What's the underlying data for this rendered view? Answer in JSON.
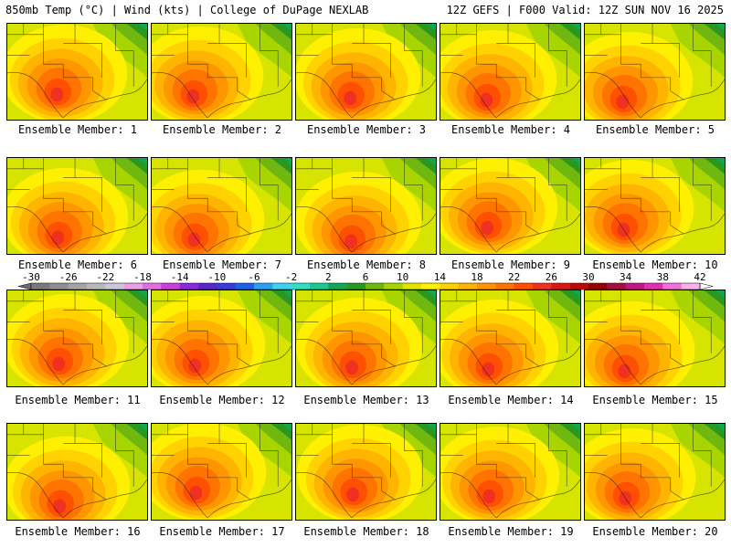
{
  "header": {
    "left": "850mb Temp (°C) | Wind (kts) | College of DuPage NEXLAB",
    "right": "12Z GEFS | F000 Valid: 12Z SUN NOV 16 2025"
  },
  "panels": [
    {
      "label": "Ensemble Member: 1"
    },
    {
      "label": "Ensemble Member: 2"
    },
    {
      "label": "Ensemble Member: 3"
    },
    {
      "label": "Ensemble Member: 4"
    },
    {
      "label": "Ensemble Member: 5"
    },
    {
      "label": "Ensemble Member: 6"
    },
    {
      "label": "Ensemble Member: 7"
    },
    {
      "label": "Ensemble Member: 8"
    },
    {
      "label": "Ensemble Member: 9"
    },
    {
      "label": "Ensemble Member: 10"
    },
    {
      "label": "Ensemble Member: 11"
    },
    {
      "label": "Ensemble Member: 12"
    },
    {
      "label": "Ensemble Member: 13"
    },
    {
      "label": "Ensemble Member: 14"
    },
    {
      "label": "Ensemble Member: 15"
    },
    {
      "label": "Ensemble Member: 16"
    },
    {
      "label": "Ensemble Member: 17"
    },
    {
      "label": "Ensemble Member: 18"
    },
    {
      "label": "Ensemble Member: 19"
    },
    {
      "label": "Ensemble Member: 20"
    }
  ],
  "colorbar": {
    "labels": [
      "-30",
      "-26",
      "-22",
      "-18",
      "-14",
      "-10",
      "-6",
      "-2",
      "2",
      "6",
      "10",
      "14",
      "18",
      "22",
      "26",
      "30",
      "34",
      "38",
      "42"
    ],
    "colors": [
      "#7a7a7a",
      "#8e8e8e",
      "#a4a4a4",
      "#b8b8b8",
      "#c8c8d8",
      "#e6a0e6",
      "#e070e0",
      "#c840d8",
      "#8a2ad8",
      "#5a28c8",
      "#3a3ad8",
      "#2060e8",
      "#2aa0f0",
      "#40d0f0",
      "#30e0c0",
      "#20c890",
      "#10a850",
      "#2a9820",
      "#70b810",
      "#a8d400",
      "#e0e400",
      "#ffef00",
      "#ffd200",
      "#ffb400",
      "#ff9600",
      "#ff7400",
      "#ff5000",
      "#f03020",
      "#d81818",
      "#b80808",
      "#980000",
      "#a01040",
      "#c01880",
      "#e030b0",
      "#f070d8",
      "#f8b0e8"
    ]
  }
}
